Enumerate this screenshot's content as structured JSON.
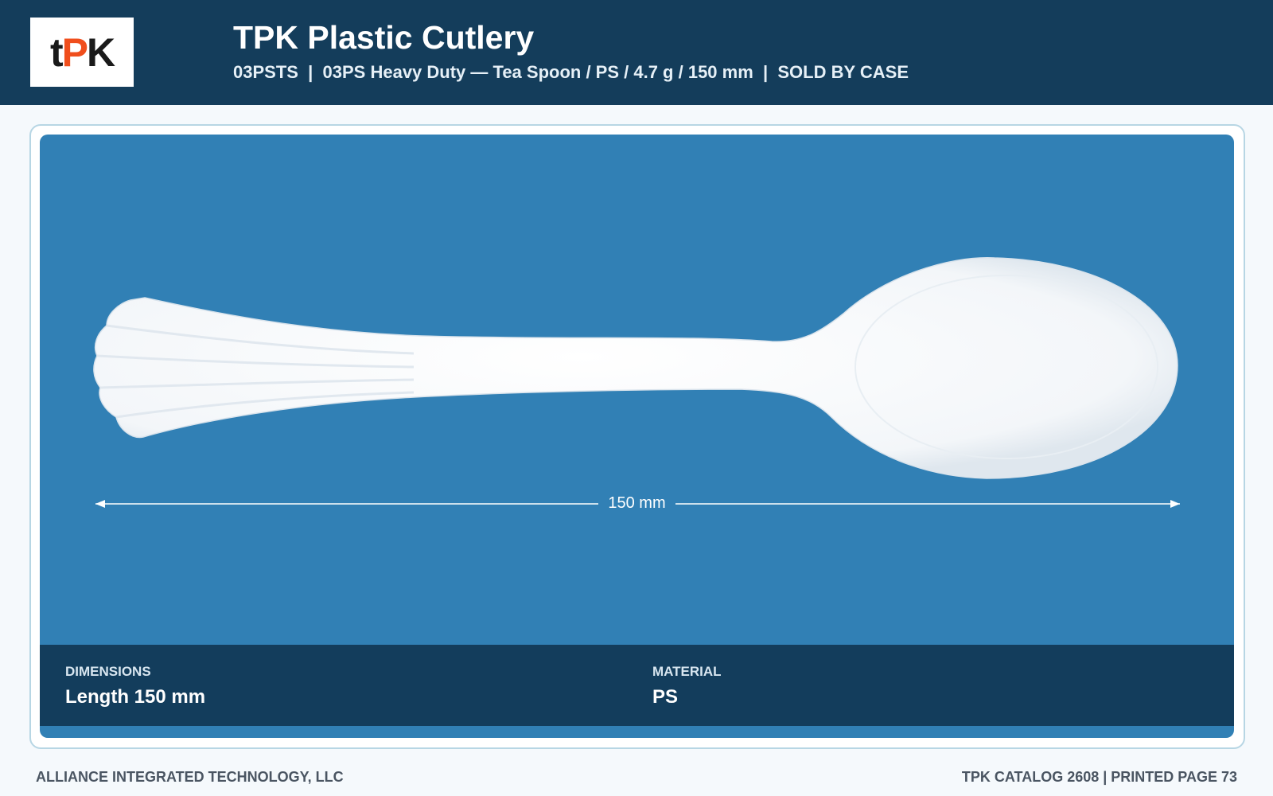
{
  "header": {
    "logo": [
      "t",
      "P",
      "K"
    ],
    "title": "TPK Plastic Cutlery",
    "subtitle": "03PSTS  |  03PS Heavy Duty — Tea Spoon / PS / 4.7 g / 150 mm  |  SOLD BY CASE"
  },
  "product": {
    "dimension_label": "150 mm"
  },
  "specs": [
    {
      "label": "DIMENSIONS",
      "value": "Length 150 mm"
    },
    {
      "label": "MATERIAL",
      "value": "PS"
    }
  ],
  "footer": {
    "left": "ALLIANCE INTEGRATED TECHNOLOGY, LLC",
    "right": "TPK CATALOG 2608 | PRINTED PAGE 73"
  }
}
